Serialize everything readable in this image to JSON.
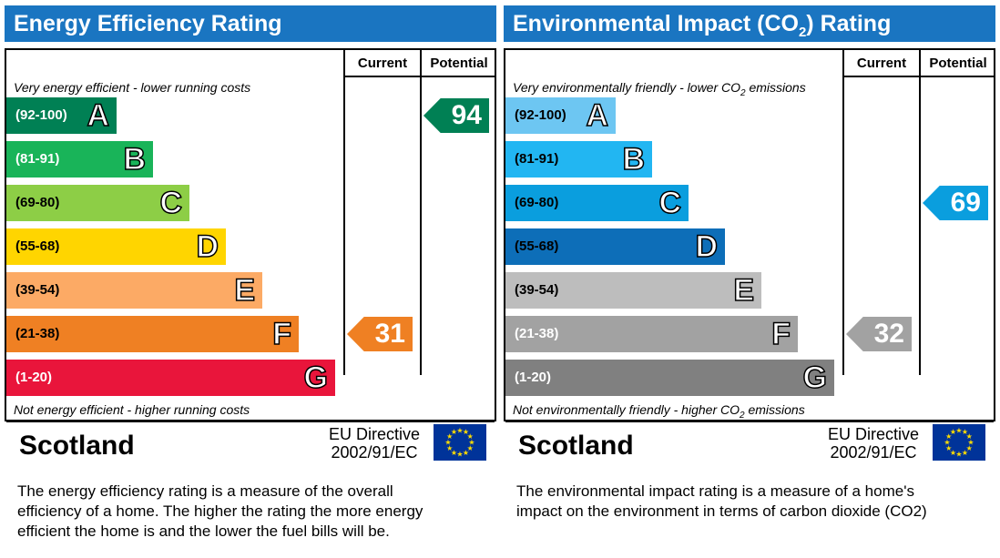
{
  "chart_data": [
    {
      "type": "bar",
      "title": "Energy Efficiency Rating",
      "title_sub": "",
      "title_suffix": "",
      "columns": [
        "Current",
        "Potential"
      ],
      "top_note": "Very energy efficient - lower running costs",
      "top_note_sub": "",
      "top_note_suffix": "",
      "bottom_note": "Not energy efficient - higher running costs",
      "bottom_note_sub": "",
      "bottom_note_suffix": "",
      "categories": [
        "A",
        "B",
        "C",
        "D",
        "E",
        "F",
        "G"
      ],
      "ranges": [
        "(92-100)",
        "(81-91)",
        "(69-80)",
        "(55-68)",
        "(39-54)",
        "(21-38)",
        "(1-20)"
      ],
      "colors": [
        "#008054",
        "#19b459",
        "#8dce46",
        "#ffd500",
        "#fcaa65",
        "#ef8023",
        "#e9153b"
      ],
      "range_text_colors": [
        "#ffffff",
        "#ffffff",
        "#000000",
        "#000000",
        "#000000",
        "#000000",
        "#ffffff"
      ],
      "current": {
        "value": 31,
        "band": "F",
        "color": "#ef8023"
      },
      "potential": {
        "value": 94,
        "band": "A",
        "color": "#008054"
      },
      "country": "Scotland",
      "directive_line1": "EU Directive",
      "directive_line2": "2002/91/EC",
      "caption": [
        "The energy efficiency rating is a measure of the overall",
        "efficiency of a home.  The higher the rating the more energy",
        "efficient the home is and the lower the fuel bills will be."
      ]
    },
    {
      "type": "bar",
      "title": "Environmental Impact (CO",
      "title_sub": "2",
      "title_suffix": ") Rating",
      "columns": [
        "Current",
        "Potential"
      ],
      "top_note": "Very environmentally friendly - lower CO",
      "top_note_sub": "2",
      "top_note_suffix": " emissions",
      "bottom_note": "Not environmentally friendly - higher CO",
      "bottom_note_sub": "2",
      "bottom_note_suffix": " emissions",
      "categories": [
        "A",
        "B",
        "C",
        "D",
        "E",
        "F",
        "G"
      ],
      "ranges": [
        "(92-100)",
        "(81-91)",
        "(69-80)",
        "(55-68)",
        "(39-54)",
        "(21-38)",
        "(1-20)"
      ],
      "colors": [
        "#6dc6f2",
        "#22b6f2",
        "#0a9ede",
        "#0d6eb8",
        "#bdbdbd",
        "#a2a2a2",
        "#808080"
      ],
      "range_text_colors": [
        "#000000",
        "#000000",
        "#000000",
        "#000000",
        "#000000",
        "#ffffff",
        "#ffffff"
      ],
      "current": {
        "value": 32,
        "band": "F",
        "color": "#a2a2a2"
      },
      "potential": {
        "value": 69,
        "band": "C",
        "color": "#0a9ede"
      },
      "country": "Scotland",
      "directive_line1": "EU Directive",
      "directive_line2": "2002/91/EC",
      "caption": [
        "The environmental impact rating is a measure of a home's",
        "impact on the environment in terms of carbon dioxide (CO2)"
      ]
    }
  ]
}
